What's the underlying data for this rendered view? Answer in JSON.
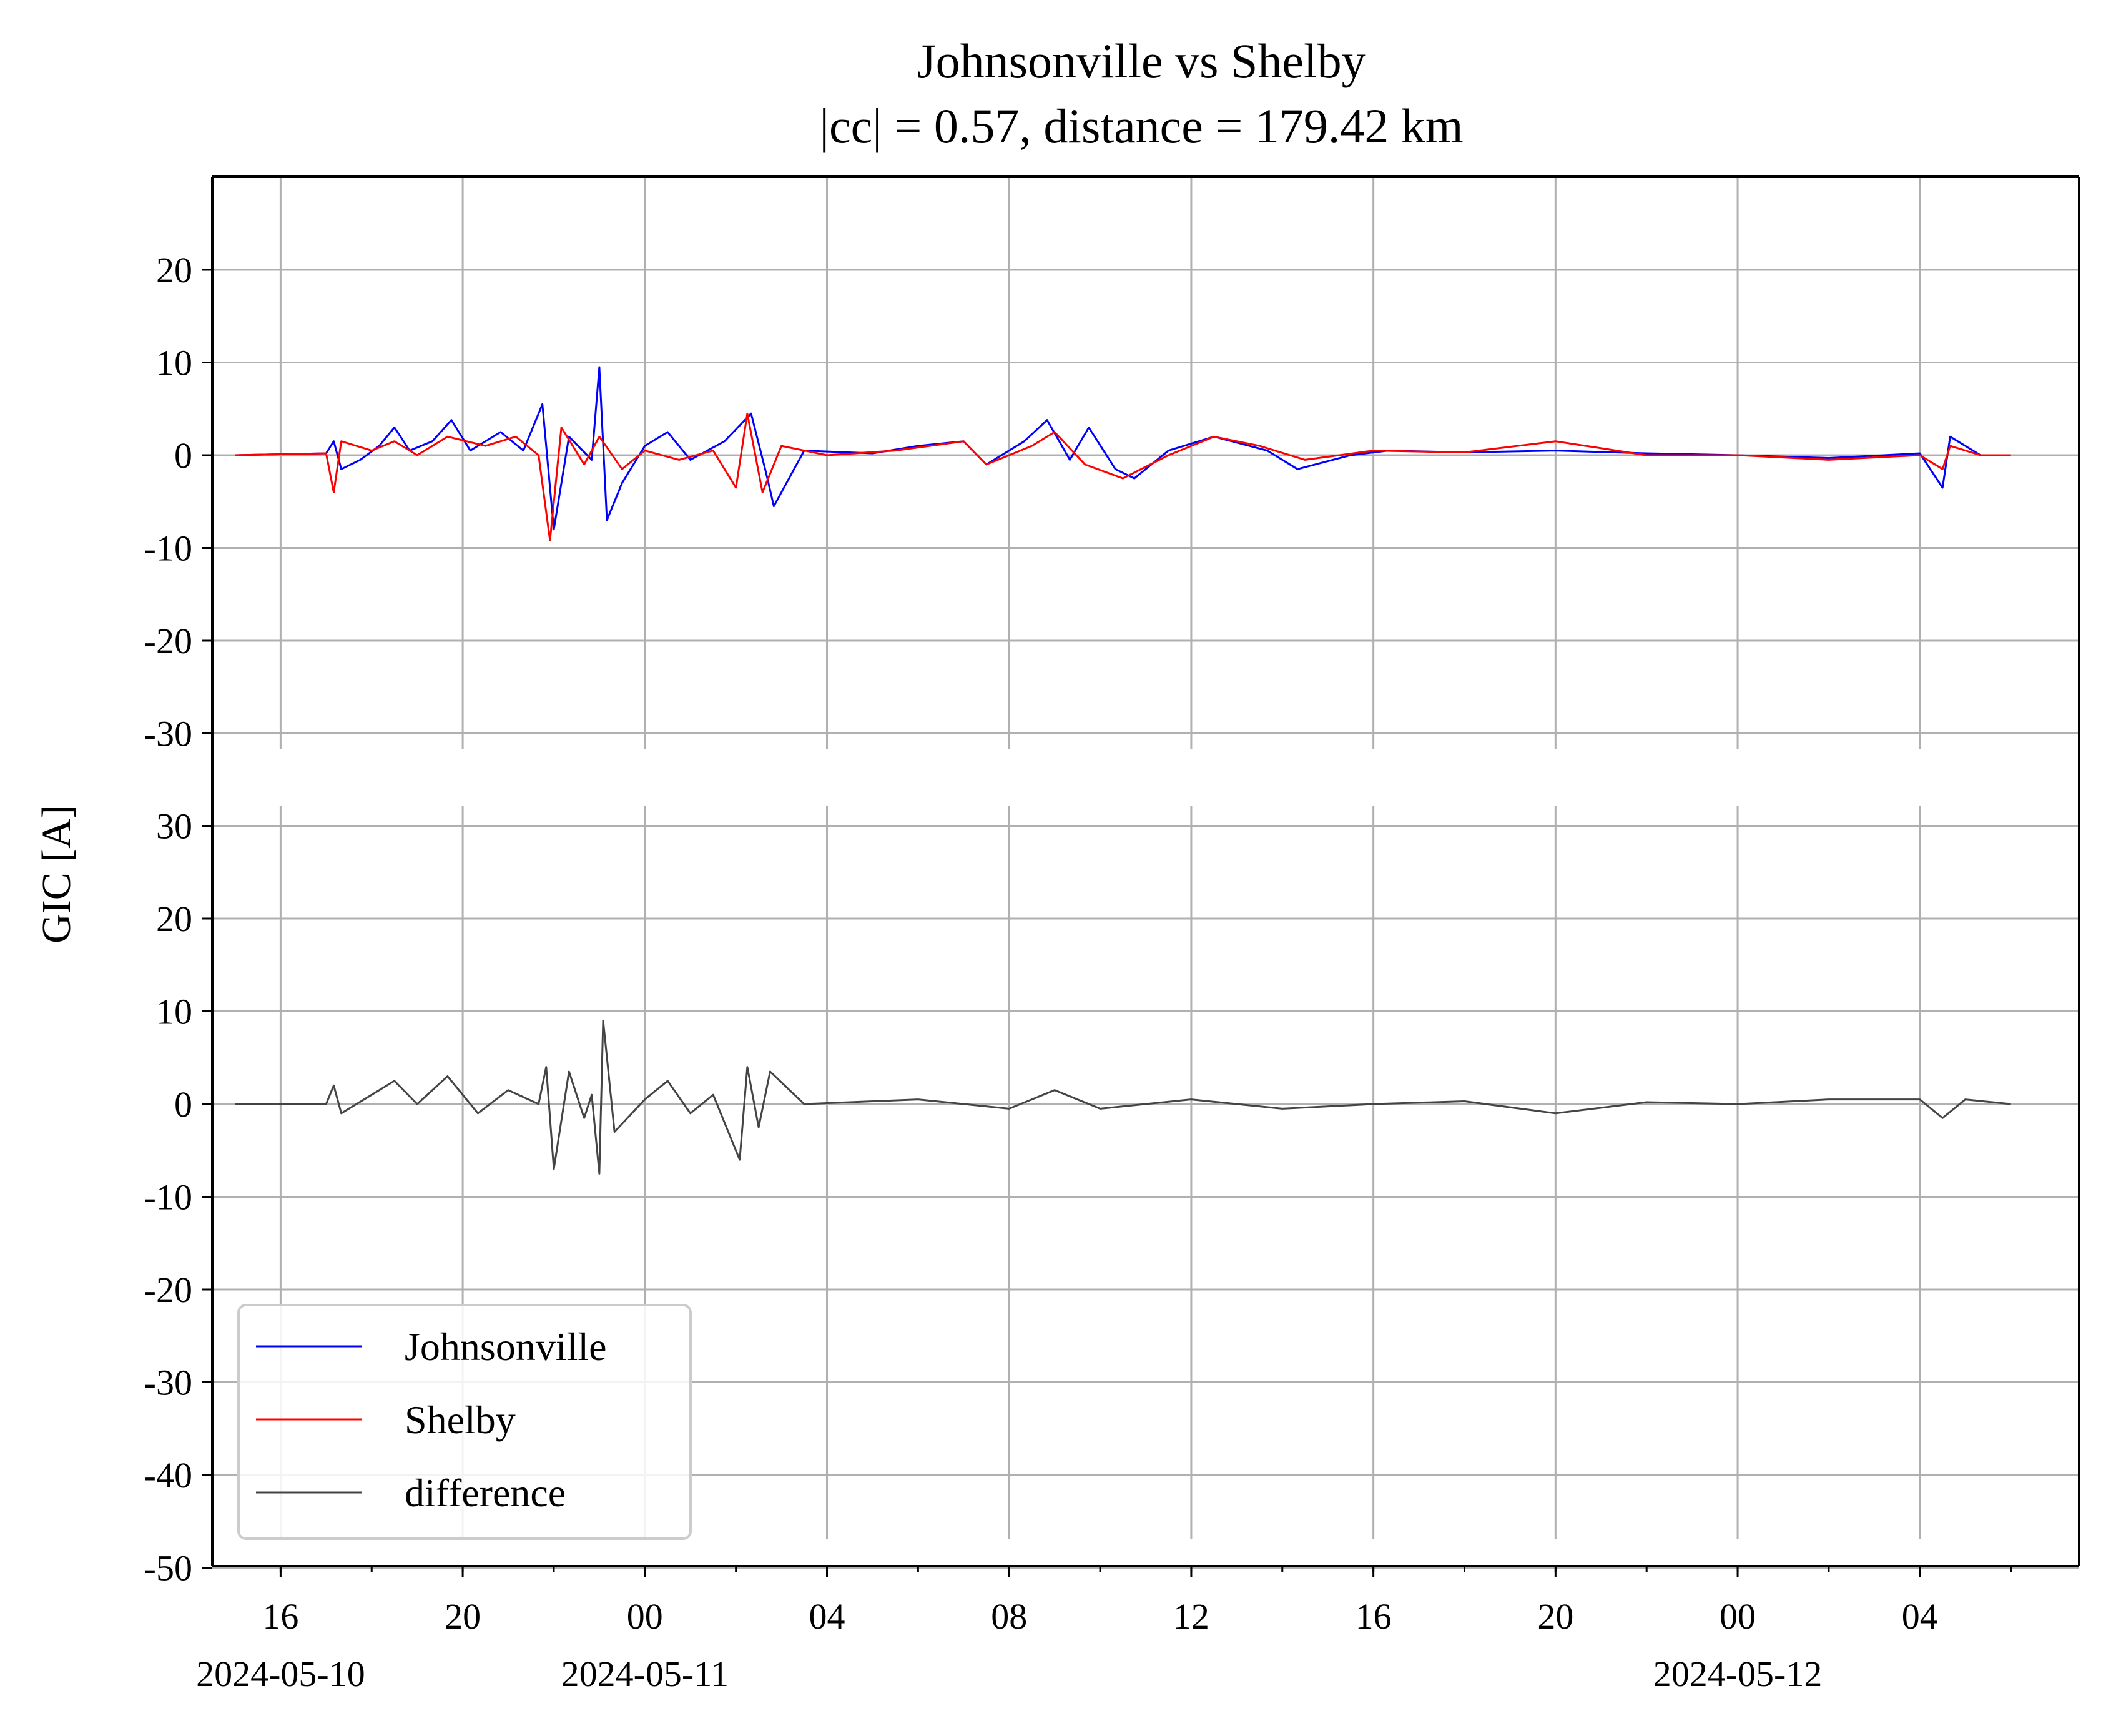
{
  "chart_data": {
    "type": "line",
    "title_line1": "Johnsonville vs Shelby",
    "title_line2": "|cc| = 0.57, distance = 179.42 km",
    "ylabel": "GIC [A]",
    "x_axis": {
      "start": "2024-05-10T14:30",
      "end": "2024-05-12T07:30",
      "tick_hours": [
        "16",
        "20",
        "00",
        "04",
        "08",
        "12",
        "16",
        "20",
        "00",
        "04"
      ],
      "date_labels": [
        "2024-05-10",
        "2024-05-11",
        "2024-05-12"
      ]
    },
    "top_panel": {
      "ylim": [
        -30,
        30
      ],
      "yticks": [
        "20",
        "10",
        "0",
        "-10",
        "-20",
        "-30"
      ],
      "series": [
        {
          "name": "Johnsonville",
          "color": "#0000ff",
          "points": [
            [
              "2024-05-10T15:00",
              0
            ],
            [
              "2024-05-10T17:00",
              0.2
            ],
            [
              "2024-05-10T17:10",
              1.5
            ],
            [
              "2024-05-10T17:20",
              -1.5
            ],
            [
              "2024-05-10T17:45",
              -0.5
            ],
            [
              "2024-05-10T18:10",
              1.0
            ],
            [
              "2024-05-10T18:30",
              3.0
            ],
            [
              "2024-05-10T18:50",
              0.5
            ],
            [
              "2024-05-10T19:20",
              1.5
            ],
            [
              "2024-05-10T19:45",
              3.8
            ],
            [
              "2024-05-10T20:10",
              0.5
            ],
            [
              "2024-05-10T20:50",
              2.5
            ],
            [
              "2024-05-10T21:20",
              0.5
            ],
            [
              "2024-05-10T21:45",
              5.5
            ],
            [
              "2024-05-10T22:00",
              -8.0
            ],
            [
              "2024-05-10T22:20",
              2.0
            ],
            [
              "2024-05-10T22:50",
              -0.5
            ],
            [
              "2024-05-10T23:00",
              9.5
            ],
            [
              "2024-05-10T23:10",
              -7.0
            ],
            [
              "2024-05-10T23:30",
              -3.0
            ],
            [
              "2024-05-11T00:00",
              1.0
            ],
            [
              "2024-05-11T00:30",
              2.5
            ],
            [
              "2024-05-11T01:00",
              -0.5
            ],
            [
              "2024-05-11T01:45",
              1.5
            ],
            [
              "2024-05-11T02:20",
              4.5
            ],
            [
              "2024-05-11T02:40",
              -2.0
            ],
            [
              "2024-05-11T02:50",
              -5.5
            ],
            [
              "2024-05-11T03:30",
              0.5
            ],
            [
              "2024-05-11T05:00",
              0.2
            ],
            [
              "2024-05-11T06:00",
              1.0
            ],
            [
              "2024-05-11T07:00",
              1.5
            ],
            [
              "2024-05-11T07:30",
              -1.0
            ],
            [
              "2024-05-11T08:20",
              1.5
            ],
            [
              "2024-05-11T08:50",
              3.8
            ],
            [
              "2024-05-11T09:20",
              -0.5
            ],
            [
              "2024-05-11T09:45",
              3.0
            ],
            [
              "2024-05-11T10:20",
              -1.5
            ],
            [
              "2024-05-11T10:45",
              -2.5
            ],
            [
              "2024-05-11T11:30",
              0.5
            ],
            [
              "2024-05-11T12:30",
              2.0
            ],
            [
              "2024-05-11T13:40",
              0.5
            ],
            [
              "2024-05-11T14:20",
              -1.5
            ],
            [
              "2024-05-11T15:30",
              0
            ],
            [
              "2024-05-11T16:20",
              0.5
            ],
            [
              "2024-05-11T18:00",
              0.3
            ],
            [
              "2024-05-11T20:00",
              0.5
            ],
            [
              "2024-05-11T22:00",
              0.2
            ],
            [
              "2024-05-12T00:00",
              0
            ],
            [
              "2024-05-12T02:00",
              -0.3
            ],
            [
              "2024-05-12T04:00",
              0.2
            ],
            [
              "2024-05-12T04:30",
              -3.5
            ],
            [
              "2024-05-12T04:40",
              2.0
            ],
            [
              "2024-05-12T05:20",
              0
            ],
            [
              "2024-05-12T06:00",
              0
            ]
          ]
        },
        {
          "name": "Shelby",
          "color": "#ff0000",
          "points": [
            [
              "2024-05-10T15:00",
              0
            ],
            [
              "2024-05-10T17:00",
              0.2
            ],
            [
              "2024-05-10T17:10",
              -4.0
            ],
            [
              "2024-05-10T17:20",
              1.5
            ],
            [
              "2024-05-10T18:00",
              0.5
            ],
            [
              "2024-05-10T18:30",
              1.5
            ],
            [
              "2024-05-10T19:00",
              0
            ],
            [
              "2024-05-10T19:40",
              2.0
            ],
            [
              "2024-05-10T20:30",
              1.0
            ],
            [
              "2024-05-10T21:10",
              2.0
            ],
            [
              "2024-05-10T21:40",
              0
            ],
            [
              "2024-05-10T21:55",
              -9.2
            ],
            [
              "2024-05-10T22:10",
              3.0
            ],
            [
              "2024-05-10T22:40",
              -1.0
            ],
            [
              "2024-05-10T23:00",
              2.0
            ],
            [
              "2024-05-10T23:30",
              -1.5
            ],
            [
              "2024-05-11T00:00",
              0.5
            ],
            [
              "2024-05-11T00:45",
              -0.5
            ],
            [
              "2024-05-11T01:30",
              0.5
            ],
            [
              "2024-05-11T02:00",
              -3.5
            ],
            [
              "2024-05-11T02:15",
              4.5
            ],
            [
              "2024-05-11T02:35",
              -4.0
            ],
            [
              "2024-05-11T03:00",
              1.0
            ],
            [
              "2024-05-11T04:00",
              0
            ],
            [
              "2024-05-11T05:30",
              0.5
            ],
            [
              "2024-05-11T07:00",
              1.5
            ],
            [
              "2024-05-11T07:30",
              -1.0
            ],
            [
              "2024-05-11T08:30",
              1.0
            ],
            [
              "2024-05-11T09:00",
              2.5
            ],
            [
              "2024-05-11T09:40",
              -1.0
            ],
            [
              "2024-05-11T10:30",
              -2.5
            ],
            [
              "2024-05-11T11:30",
              0
            ],
            [
              "2024-05-11T12:30",
              2.0
            ],
            [
              "2024-05-11T13:30",
              1.0
            ],
            [
              "2024-05-11T14:30",
              -0.5
            ],
            [
              "2024-05-11T16:00",
              0.5
            ],
            [
              "2024-05-11T18:00",
              0.3
            ],
            [
              "2024-05-11T20:00",
              1.5
            ],
            [
              "2024-05-11T22:00",
              0
            ],
            [
              "2024-05-12T00:00",
              0
            ],
            [
              "2024-05-12T02:00",
              -0.5
            ],
            [
              "2024-05-12T04:00",
              0
            ],
            [
              "2024-05-12T04:30",
              -1.5
            ],
            [
              "2024-05-12T04:40",
              1.0
            ],
            [
              "2024-05-12T05:20",
              0
            ],
            [
              "2024-05-12T06:00",
              0
            ]
          ]
        }
      ]
    },
    "bottom_panel": {
      "ylim": [
        -50,
        32
      ],
      "yticks": [
        "30",
        "20",
        "10",
        "0",
        "-10",
        "-20",
        "-30",
        "-40",
        "-50"
      ],
      "series": [
        {
          "name": "difference",
          "color": "#444444",
          "points": [
            [
              "2024-05-10T15:00",
              0
            ],
            [
              "2024-05-10T17:00",
              0
            ],
            [
              "2024-05-10T17:10",
              2.0
            ],
            [
              "2024-05-10T17:20",
              -1.0
            ],
            [
              "2024-05-10T18:00",
              1.0
            ],
            [
              "2024-05-10T18:30",
              2.5
            ],
            [
              "2024-05-10T19:00",
              0
            ],
            [
              "2024-05-10T19:40",
              3.0
            ],
            [
              "2024-05-10T20:20",
              -1.0
            ],
            [
              "2024-05-10T21:00",
              1.5
            ],
            [
              "2024-05-10T21:40",
              0
            ],
            [
              "2024-05-10T21:50",
              4.0
            ],
            [
              "2024-05-10T22:00",
              -7.0
            ],
            [
              "2024-05-10T22:20",
              3.5
            ],
            [
              "2024-05-10T22:40",
              -1.5
            ],
            [
              "2024-05-10T22:50",
              1.0
            ],
            [
              "2024-05-10T23:00",
              -7.5
            ],
            [
              "2024-05-10T23:05",
              9.0
            ],
            [
              "2024-05-10T23:20",
              -3.0
            ],
            [
              "2024-05-11T00:00",
              0.5
            ],
            [
              "2024-05-11T00:30",
              2.5
            ],
            [
              "2024-05-11T01:00",
              -1.0
            ],
            [
              "2024-05-11T01:30",
              1.0
            ],
            [
              "2024-05-11T02:05",
              -6.0
            ],
            [
              "2024-05-11T02:15",
              4.0
            ],
            [
              "2024-05-11T02:30",
              -2.5
            ],
            [
              "2024-05-11T02:45",
              3.5
            ],
            [
              "2024-05-11T03:30",
              0
            ],
            [
              "2024-05-11T06:00",
              0.5
            ],
            [
              "2024-05-11T08:00",
              -0.5
            ],
            [
              "2024-05-11T09:00",
              1.5
            ],
            [
              "2024-05-11T10:00",
              -0.5
            ],
            [
              "2024-05-11T12:00",
              0.5
            ],
            [
              "2024-05-11T14:00",
              -0.5
            ],
            [
              "2024-05-11T16:00",
              0
            ],
            [
              "2024-05-11T18:00",
              0.3
            ],
            [
              "2024-05-11T20:00",
              -1.0
            ],
            [
              "2024-05-11T22:00",
              0.2
            ],
            [
              "2024-05-12T00:00",
              0
            ],
            [
              "2024-05-12T02:00",
              0.5
            ],
            [
              "2024-05-12T04:00",
              0.5
            ],
            [
              "2024-05-12T04:30",
              -1.5
            ],
            [
              "2024-05-12T05:00",
              0.5
            ],
            [
              "2024-05-12T06:00",
              0
            ]
          ]
        }
      ]
    },
    "legend": {
      "placement": "lower-left",
      "entries": [
        {
          "label": "Johnsonville",
          "color": "#0000ff"
        },
        {
          "label": "Shelby",
          "color": "#ff0000"
        },
        {
          "label": "difference",
          "color": "#444444"
        }
      ]
    },
    "grid": true,
    "colors": {
      "grid": "#b0b0b0",
      "axes": "#000000"
    }
  }
}
